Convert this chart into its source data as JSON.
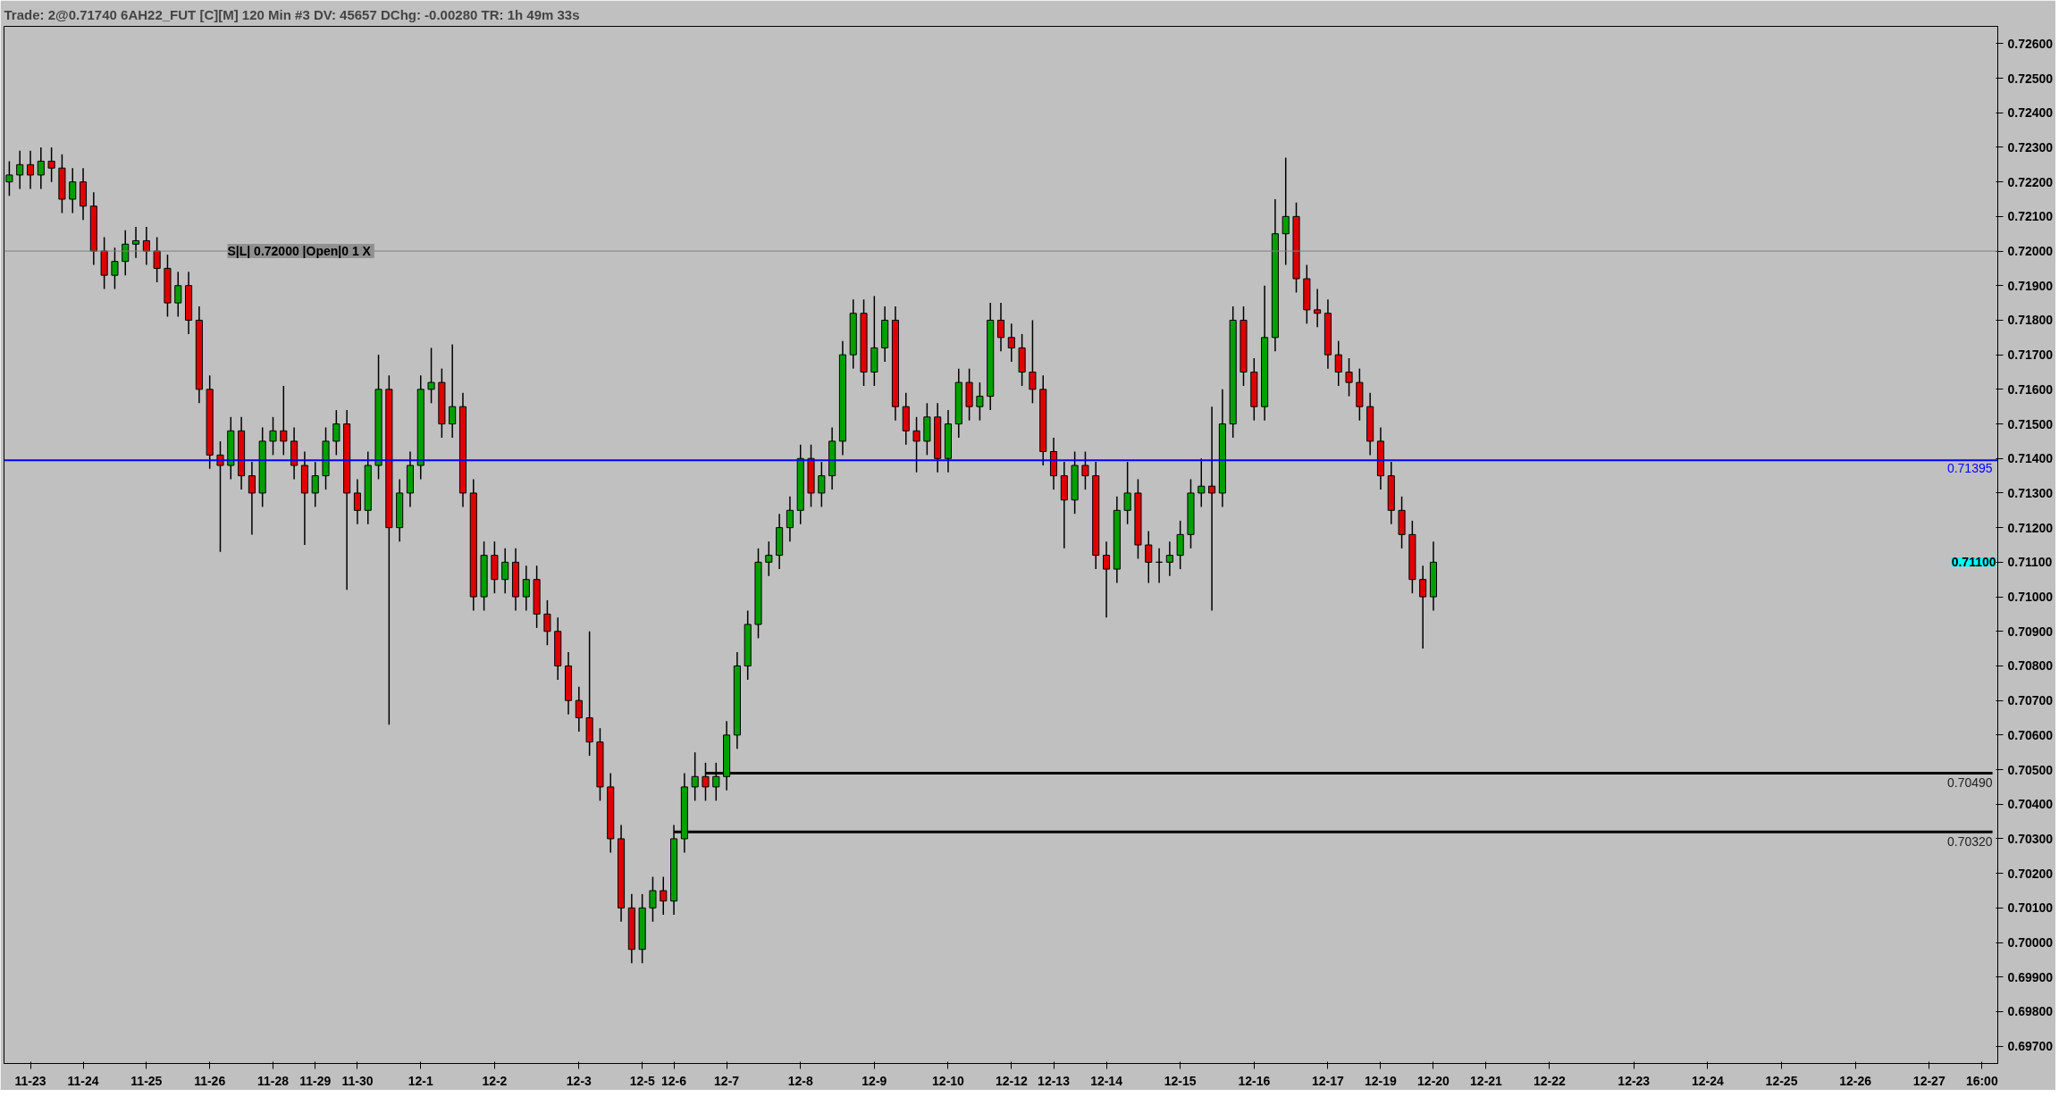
{
  "chart_data": {
    "type": "candlestick",
    "title": "Trade: 2@0.71740 6AH22_FUT [C][M]  120 Min  #3 DV: 45657 DChg: -0.00280 TR: 1h 49m 33s",
    "categories": [
      null,
      null,
      "11-23",
      null,
      null,
      null,
      null,
      "11-24",
      null,
      null,
      null,
      null,
      null,
      "11-25",
      null,
      null,
      null,
      null,
      null,
      "11-26",
      null,
      null,
      null,
      null,
      null,
      "11-28",
      null,
      null,
      null,
      "11-29",
      null,
      null,
      null,
      "11-30",
      null,
      null,
      null,
      null,
      null,
      "12-1",
      null,
      null,
      null,
      null,
      null,
      null,
      "12-2",
      null,
      null,
      null,
      null,
      null,
      null,
      null,
      "12-3",
      null,
      null,
      null,
      null,
      null,
      "12-5",
      null,
      null,
      "12-6",
      null,
      null,
      null,
      null,
      "12-7",
      null,
      null,
      null,
      null,
      null,
      null,
      "12-8",
      null,
      null,
      null,
      null,
      null,
      null,
      "12-9",
      null,
      null,
      null,
      null,
      null,
      null,
      "12-10",
      null,
      null,
      null,
      null,
      null,
      "12-12",
      null,
      null,
      null,
      "12-13",
      null,
      null,
      null,
      null,
      "12-14",
      null,
      null,
      null,
      null,
      null,
      null,
      "12-15",
      null,
      null,
      null,
      null,
      null,
      null,
      "12-16",
      null,
      null,
      null,
      null,
      null,
      null,
      "12-17",
      null,
      null,
      null,
      null,
      "12-19",
      null,
      null,
      null,
      null,
      "12-20",
      null,
      null,
      null,
      null,
      "12-21",
      null,
      null,
      null,
      null,
      null,
      "12-22",
      null,
      null,
      null,
      null,
      null,
      null,
      null,
      "12-23",
      null,
      null,
      null,
      null,
      null,
      null,
      "12-24",
      null,
      null,
      null,
      null,
      null,
      null,
      "12-25",
      null,
      null,
      null,
      null,
      null,
      null,
      "12-26",
      null,
      null,
      null,
      null,
      null,
      null,
      "12-27",
      null,
      null,
      null,
      null,
      "16:00",
      null
    ],
    "ohlc": [
      [
        0.722,
        0.7226,
        0.7216,
        0.7222
      ],
      [
        0.7222,
        0.7229,
        0.7218,
        0.7225
      ],
      [
        0.7225,
        0.7229,
        0.7218,
        0.7222
      ],
      [
        0.7222,
        0.723,
        0.7218,
        0.7226
      ],
      [
        0.7226,
        0.723,
        0.722,
        0.7224
      ],
      [
        0.7224,
        0.7228,
        0.7211,
        0.7215
      ],
      [
        0.7215,
        0.7224,
        0.7211,
        0.722
      ],
      [
        0.722,
        0.7224,
        0.7209,
        0.7213
      ],
      [
        0.7213,
        0.7217,
        0.7196,
        0.72
      ],
      [
        0.72,
        0.7204,
        0.7189,
        0.7193
      ],
      [
        0.7193,
        0.7201,
        0.7189,
        0.7197
      ],
      [
        0.7197,
        0.7206,
        0.7193,
        0.7202
      ],
      [
        0.7202,
        0.7207,
        0.7198,
        0.7203
      ],
      [
        0.7203,
        0.7207,
        0.7196,
        0.72
      ],
      [
        0.72,
        0.7204,
        0.7191,
        0.7195
      ],
      [
        0.7195,
        0.7199,
        0.7181,
        0.7185
      ],
      [
        0.7185,
        0.7194,
        0.7181,
        0.719
      ],
      [
        0.719,
        0.7194,
        0.7176,
        0.718
      ],
      [
        0.718,
        0.7184,
        0.7156,
        0.716
      ],
      [
        0.716,
        0.7164,
        0.7137,
        0.7141
      ],
      [
        0.7141,
        0.7145,
        0.7113,
        0.7138
      ],
      [
        0.7138,
        0.7152,
        0.7134,
        0.7148
      ],
      [
        0.7148,
        0.7152,
        0.7131,
        0.7135
      ],
      [
        0.7135,
        0.7139,
        0.7118,
        0.713
      ],
      [
        0.713,
        0.7149,
        0.7126,
        0.7145
      ],
      [
        0.7145,
        0.7152,
        0.7141,
        0.7148
      ],
      [
        0.7148,
        0.7161,
        0.7141,
        0.7145
      ],
      [
        0.7145,
        0.7149,
        0.7134,
        0.7138
      ],
      [
        0.7138,
        0.7142,
        0.7115,
        0.713
      ],
      [
        0.713,
        0.7139,
        0.7126,
        0.7135
      ],
      [
        0.7135,
        0.7149,
        0.7131,
        0.7145
      ],
      [
        0.7145,
        0.7154,
        0.7141,
        0.715
      ],
      [
        0.715,
        0.7154,
        0.7102,
        0.713
      ],
      [
        0.713,
        0.7134,
        0.7121,
        0.7125
      ],
      [
        0.7125,
        0.7142,
        0.7121,
        0.7138
      ],
      [
        0.7138,
        0.717,
        0.7134,
        0.716
      ],
      [
        0.716,
        0.7164,
        0.7063,
        0.712
      ],
      [
        0.712,
        0.7134,
        0.7116,
        0.713
      ],
      [
        0.713,
        0.7142,
        0.7126,
        0.7138
      ],
      [
        0.7138,
        0.7164,
        0.7134,
        0.716
      ],
      [
        0.716,
        0.7172,
        0.7156,
        0.7162
      ],
      [
        0.7162,
        0.7166,
        0.7146,
        0.715
      ],
      [
        0.715,
        0.7173,
        0.7146,
        0.7155
      ],
      [
        0.7155,
        0.7159,
        0.7126,
        0.713
      ],
      [
        0.713,
        0.7134,
        0.7096,
        0.71
      ],
      [
        0.71,
        0.7116,
        0.7096,
        0.7112
      ],
      [
        0.7112,
        0.7116,
        0.7101,
        0.7105
      ],
      [
        0.7105,
        0.7114,
        0.7101,
        0.711
      ],
      [
        0.711,
        0.7114,
        0.7096,
        0.71
      ],
      [
        0.71,
        0.7109,
        0.7096,
        0.7105
      ],
      [
        0.7105,
        0.7109,
        0.7091,
        0.7095
      ],
      [
        0.7095,
        0.7099,
        0.7086,
        0.709
      ],
      [
        0.709,
        0.7094,
        0.7076,
        0.708
      ],
      [
        0.708,
        0.7084,
        0.7066,
        0.707
      ],
      [
        0.707,
        0.7074,
        0.7061,
        0.7065
      ],
      [
        0.7065,
        0.709,
        0.7054,
        0.7058
      ],
      [
        0.7058,
        0.7062,
        0.7041,
        0.7045
      ],
      [
        0.7045,
        0.7049,
        0.7026,
        0.703
      ],
      [
        0.703,
        0.7034,
        0.7006,
        0.701
      ],
      [
        0.701,
        0.7014,
        0.6994,
        0.6998
      ],
      [
        0.6998,
        0.7014,
        0.6994,
        0.701
      ],
      [
        0.701,
        0.7019,
        0.7006,
        0.7015
      ],
      [
        0.7015,
        0.7019,
        0.7008,
        0.7012
      ],
      [
        0.7012,
        0.7034,
        0.7008,
        0.703
      ],
      [
        0.703,
        0.7049,
        0.7026,
        0.7045
      ],
      [
        0.7045,
        0.7055,
        0.7041,
        0.7048
      ],
      [
        0.7048,
        0.7052,
        0.7041,
        0.7045
      ],
      [
        0.7045,
        0.7052,
        0.7041,
        0.7048
      ],
      [
        0.7048,
        0.7064,
        0.7044,
        0.706
      ],
      [
        0.706,
        0.7084,
        0.7056,
        0.708
      ],
      [
        0.708,
        0.7096,
        0.7076,
        0.7092
      ],
      [
        0.7092,
        0.7114,
        0.7088,
        0.711
      ],
      [
        0.711,
        0.7116,
        0.7106,
        0.7112
      ],
      [
        0.7112,
        0.7124,
        0.7108,
        0.712
      ],
      [
        0.712,
        0.7129,
        0.7116,
        0.7125
      ],
      [
        0.7125,
        0.7144,
        0.7121,
        0.714
      ],
      [
        0.714,
        0.7144,
        0.7126,
        0.713
      ],
      [
        0.713,
        0.7139,
        0.7126,
        0.7135
      ],
      [
        0.7135,
        0.7149,
        0.7131,
        0.7145
      ],
      [
        0.7145,
        0.7174,
        0.7141,
        0.717
      ],
      [
        0.717,
        0.7186,
        0.7166,
        0.7182
      ],
      [
        0.7182,
        0.7186,
        0.7161,
        0.7165
      ],
      [
        0.7165,
        0.7187,
        0.7161,
        0.7172
      ],
      [
        0.7172,
        0.7184,
        0.7168,
        0.718
      ],
      [
        0.718,
        0.7184,
        0.7151,
        0.7155
      ],
      [
        0.7155,
        0.7159,
        0.7144,
        0.7148
      ],
      [
        0.7148,
        0.7152,
        0.7136,
        0.7145
      ],
      [
        0.7145,
        0.7156,
        0.7141,
        0.7152
      ],
      [
        0.7152,
        0.7156,
        0.7136,
        0.714
      ],
      [
        0.714,
        0.7154,
        0.7136,
        0.715
      ],
      [
        0.715,
        0.7166,
        0.7146,
        0.7162
      ],
      [
        0.7162,
        0.7166,
        0.7151,
        0.7155
      ],
      [
        0.7155,
        0.7162,
        0.7151,
        0.7158
      ],
      [
        0.7158,
        0.7185,
        0.7154,
        0.718
      ],
      [
        0.718,
        0.7185,
        0.7171,
        0.7175
      ],
      [
        0.7175,
        0.7179,
        0.7168,
        0.7172
      ],
      [
        0.7172,
        0.7176,
        0.7161,
        0.7165
      ],
      [
        0.7165,
        0.718,
        0.7156,
        0.716
      ],
      [
        0.716,
        0.7164,
        0.7138,
        0.7142
      ],
      [
        0.7142,
        0.7146,
        0.7131,
        0.7135
      ],
      [
        0.7135,
        0.7139,
        0.7114,
        0.7128
      ],
      [
        0.7128,
        0.7142,
        0.7124,
        0.7138
      ],
      [
        0.7138,
        0.7142,
        0.7131,
        0.7135
      ],
      [
        0.7135,
        0.7139,
        0.7108,
        0.7112
      ],
      [
        0.7112,
        0.7116,
        0.7094,
        0.7108
      ],
      [
        0.7108,
        0.7129,
        0.7104,
        0.7125
      ],
      [
        0.7125,
        0.7139,
        0.7121,
        0.713
      ],
      [
        0.713,
        0.7134,
        0.7111,
        0.7115
      ],
      [
        0.7115,
        0.7119,
        0.7104,
        0.711
      ],
      [
        0.711,
        0.7114,
        0.7104,
        0.711
      ],
      [
        0.711,
        0.7116,
        0.7106,
        0.7112
      ],
      [
        0.7112,
        0.7122,
        0.7108,
        0.7118
      ],
      [
        0.7118,
        0.7134,
        0.7114,
        0.713
      ],
      [
        0.713,
        0.714,
        0.7126,
        0.7132
      ],
      [
        0.7132,
        0.7155,
        0.7096,
        0.713
      ],
      [
        0.713,
        0.716,
        0.7126,
        0.715
      ],
      [
        0.715,
        0.7184,
        0.7146,
        0.718
      ],
      [
        0.718,
        0.7184,
        0.7161,
        0.7165
      ],
      [
        0.7165,
        0.7169,
        0.7151,
        0.7155
      ],
      [
        0.7155,
        0.719,
        0.7151,
        0.7175
      ],
      [
        0.7175,
        0.7215,
        0.7171,
        0.7205
      ],
      [
        0.7205,
        0.7227,
        0.7196,
        0.721
      ],
      [
        0.721,
        0.7214,
        0.7188,
        0.7192
      ],
      [
        0.7192,
        0.7196,
        0.7179,
        0.7183
      ],
      [
        0.7183,
        0.7189,
        0.7178,
        0.7182
      ],
      [
        0.7182,
        0.7186,
        0.7166,
        0.717
      ],
      [
        0.717,
        0.7174,
        0.7161,
        0.7165
      ],
      [
        0.7165,
        0.7169,
        0.7158,
        0.7162
      ],
      [
        0.7162,
        0.7166,
        0.7151,
        0.7155
      ],
      [
        0.7155,
        0.7159,
        0.7141,
        0.7145
      ],
      [
        0.7145,
        0.7149,
        0.7131,
        0.7135
      ],
      [
        0.7135,
        0.7139,
        0.7121,
        0.7125
      ],
      [
        0.7125,
        0.7129,
        0.7114,
        0.7118
      ],
      [
        0.7118,
        0.7122,
        0.7101,
        0.7105
      ],
      [
        0.7105,
        0.7109,
        0.7085,
        0.71
      ],
      [
        0.71,
        0.7116,
        0.7096,
        0.711
      ],
      null,
      null,
      null,
      null,
      null,
      null,
      null,
      null,
      null,
      null,
      null,
      null,
      null,
      null,
      null,
      null,
      null,
      null,
      null,
      null,
      null,
      null,
      null,
      null,
      null,
      null,
      null,
      null,
      null,
      null,
      null,
      null,
      null,
      null,
      null,
      null,
      null,
      null,
      null,
      null,
      null,
      null,
      null,
      null,
      null,
      null,
      null,
      null,
      null,
      null,
      null,
      null,
      null
    ],
    "series": [
      {
        "type": "line",
        "color": "#000000",
        "values": [
          null,
          null,
          null,
          null,
          null,
          null,
          null,
          null,
          null,
          null,
          null,
          null,
          null,
          null,
          null,
          null,
          null,
          null,
          null,
          null,
          null,
          null,
          null,
          null,
          null,
          null,
          null,
          null,
          null,
          null,
          null,
          null,
          null,
          null,
          null,
          null,
          null,
          null,
          null,
          null,
          null,
          null,
          null,
          null,
          null,
          null,
          null,
          null,
          null,
          null,
          null,
          null,
          null,
          null,
          null,
          null,
          null,
          null,
          null,
          null,
          null,
          null,
          null,
          null,
          null,
          null,
          0.7049,
          0.7049,
          0.7049,
          0.7049,
          0.7049,
          0.7049,
          0.7049,
          0.7049,
          0.7049,
          0.7049,
          0.7049,
          0.7049,
          0.7049,
          0.7049,
          0.7049,
          0.7049,
          0.7049,
          0.7049,
          0.7049,
          0.7049,
          0.7049,
          0.7049,
          0.7049,
          0.7049,
          0.7049,
          0.7049,
          0.7049,
          0.7049,
          0.7049,
          0.7049,
          0.7049,
          0.7049,
          0.7049,
          0.7049,
          0.7049,
          0.7049,
          0.7049,
          0.7049,
          0.7049,
          0.7049,
          0.7049,
          0.7049,
          0.7049,
          0.7049,
          0.7049,
          0.7049,
          0.7049,
          0.7049,
          0.7049,
          0.7049,
          0.7049,
          0.7049,
          0.7049,
          0.7049,
          0.7049,
          0.7049,
          0.7049,
          0.7049,
          0.7049,
          0.7049,
          0.7049,
          0.7049,
          0.7049,
          0.7049,
          0.7049,
          0.7049,
          0.7049,
          0.7049,
          0.7049,
          0.7049,
          0.7049,
          0.7049,
          0.7049,
          0.7049,
          0.7049,
          0.7049,
          0.7049,
          0.7049,
          0.7049,
          0.7049,
          0.7049,
          0.7049,
          0.7049,
          0.7049,
          0.7049,
          0.7049,
          0.7049,
          0.7049,
          0.7049,
          0.7049,
          0.7049,
          0.7049,
          0.7049,
          0.7049,
          0.7049,
          0.7049,
          0.7049,
          0.7049,
          0.7049,
          0.7049,
          0.7049,
          0.7049,
          0.7049,
          0.7049,
          0.7049,
          0.7049,
          0.7049,
          0.7049,
          0.7049,
          0.7049,
          0.7049,
          0.7049,
          0.7049,
          0.7049,
          0.7049,
          0.7049,
          0.7049,
          0.7049,
          0.7049,
          0.7049,
          0.7049,
          0.7049,
          0.7049
        ],
        "value_labels": [
          null,
          null,
          null,
          null,
          null,
          null,
          null,
          null,
          null,
          null,
          null,
          null,
          null,
          null,
          null,
          null,
          null,
          null,
          null,
          null,
          null,
          null,
          null,
          null,
          null,
          null,
          null,
          null,
          null,
          null,
          null,
          null,
          null,
          null,
          null,
          null,
          null,
          null,
          null,
          null,
          null,
          null,
          null,
          null,
          null,
          null,
          null,
          null,
          null,
          null,
          null,
          null,
          null,
          null,
          null,
          null,
          null,
          null,
          null,
          null,
          null,
          null,
          null,
          null,
          null,
          null,
          null,
          null,
          null,
          null,
          null,
          null,
          null,
          null,
          null,
          null,
          null,
          null,
          null,
          null,
          null,
          null,
          null,
          null,
          null,
          null,
          null,
          null,
          null,
          null,
          null,
          null,
          null,
          null,
          null,
          null,
          null,
          null,
          null,
          null,
          null,
          null,
          null,
          null,
          null,
          null,
          null,
          null,
          null,
          null,
          null,
          null,
          null,
          null,
          null,
          null,
          null,
          null,
          null,
          null,
          null,
          null,
          null,
          null,
          null,
          null,
          null,
          null,
          null,
          null,
          null,
          null,
          null,
          null,
          null,
          null,
          null,
          null,
          null,
          null,
          null,
          null,
          null,
          null,
          null,
          null,
          null,
          null,
          null,
          null,
          null,
          null,
          null,
          null,
          null,
          null,
          null,
          null,
          null,
          null,
          null,
          null,
          null,
          null,
          null,
          null,
          null,
          null,
          null,
          null,
          null,
          null,
          null,
          null,
          null,
          null,
          null,
          null,
          null,
          null,
          null,
          null,
          null,
          null,
          null,
          null,
          null,
          null,
          "0.70490"
        ]
      },
      {
        "type": "line",
        "color": "#000000",
        "values": [
          null,
          null,
          null,
          null,
          null,
          null,
          null,
          null,
          null,
          null,
          null,
          null,
          null,
          null,
          null,
          null,
          null,
          null,
          null,
          null,
          null,
          null,
          null,
          null,
          null,
          null,
          null,
          null,
          null,
          null,
          null,
          null,
          null,
          null,
          null,
          null,
          null,
          null,
          null,
          null,
          null,
          null,
          null,
          null,
          null,
          null,
          null,
          null,
          null,
          null,
          null,
          null,
          null,
          null,
          null,
          null,
          null,
          null,
          null,
          null,
          null,
          null,
          null,
          0.7032,
          0.7032,
          0.7032,
          0.7032,
          0.7032,
          0.7032,
          0.7032,
          0.7032,
          0.7032,
          0.7032,
          0.7032,
          0.7032,
          0.7032,
          0.7032,
          0.7032,
          0.7032,
          0.7032,
          0.7032,
          0.7032,
          0.7032,
          0.7032,
          0.7032,
          0.7032,
          0.7032,
          0.7032,
          0.7032,
          0.7032,
          0.7032,
          0.7032,
          0.7032,
          0.7032,
          0.7032,
          0.7032,
          0.7032,
          0.7032,
          0.7032,
          0.7032,
          0.7032,
          0.7032,
          0.7032,
          0.7032,
          0.7032,
          0.7032,
          0.7032,
          0.7032,
          0.7032,
          0.7032,
          0.7032,
          0.7032,
          0.7032,
          0.7032,
          0.7032,
          0.7032,
          0.7032,
          0.7032,
          0.7032,
          0.7032,
          0.7032,
          0.7032,
          0.7032,
          0.7032,
          0.7032,
          0.7032,
          0.7032,
          0.7032,
          0.7032,
          0.7032,
          0.7032,
          0.7032,
          0.7032,
          0.7032,
          0.7032,
          0.7032,
          0.7032,
          0.7032,
          0.7032,
          0.7032,
          0.7032,
          0.7032,
          0.7032,
          0.7032,
          0.7032,
          0.7032,
          0.7032,
          0.7032,
          0.7032,
          0.7032,
          0.7032,
          0.7032,
          0.7032,
          0.7032,
          0.7032,
          0.7032,
          0.7032,
          0.7032,
          0.7032,
          0.7032,
          0.7032,
          0.7032,
          0.7032,
          0.7032,
          0.7032,
          0.7032,
          0.7032,
          0.7032,
          0.7032,
          0.7032,
          0.7032,
          0.7032,
          0.7032,
          0.7032,
          0.7032,
          0.7032,
          0.7032,
          0.7032,
          0.7032,
          0.7032,
          0.7032,
          0.7032,
          0.7032,
          0.7032,
          0.7032,
          0.7032,
          0.7032,
          0.7032,
          0.7032
        ],
        "value_labels": [
          null,
          null,
          null,
          null,
          null,
          null,
          null,
          null,
          null,
          null,
          null,
          null,
          null,
          null,
          null,
          null,
          null,
          null,
          null,
          null,
          null,
          null,
          null,
          null,
          null,
          null,
          null,
          null,
          null,
          null,
          null,
          null,
          null,
          null,
          null,
          null,
          null,
          null,
          null,
          null,
          null,
          null,
          null,
          null,
          null,
          null,
          null,
          null,
          null,
          null,
          null,
          null,
          null,
          null,
          null,
          null,
          null,
          null,
          null,
          null,
          null,
          null,
          null,
          null,
          null,
          null,
          null,
          null,
          null,
          null,
          null,
          null,
          null,
          null,
          null,
          null,
          null,
          null,
          null,
          null,
          null,
          null,
          null,
          null,
          null,
          null,
          null,
          null,
          null,
          null,
          null,
          null,
          null,
          null,
          null,
          null,
          null,
          null,
          null,
          null,
          null,
          null,
          null,
          null,
          null,
          null,
          null,
          null,
          null,
          null,
          null,
          null,
          null,
          null,
          null,
          null,
          null,
          null,
          null,
          null,
          null,
          null,
          null,
          null,
          null,
          null,
          null,
          null,
          null,
          null,
          null,
          null,
          null,
          null,
          null,
          null,
          null,
          null,
          null,
          null,
          null,
          null,
          null,
          null,
          null,
          null,
          null,
          null,
          null,
          null,
          null,
          null,
          null,
          null,
          null,
          null,
          null,
          null,
          null,
          null,
          null,
          null,
          null,
          null,
          null,
          null,
          null,
          null,
          null,
          null,
          null,
          null,
          null,
          null,
          null,
          null,
          null,
          null,
          null,
          null,
          null,
          null,
          null,
          null,
          null,
          null,
          null,
          null,
          "0.70320"
        ]
      }
    ],
    "ref_lines": [
      {
        "axis": "y",
        "value": 0.72,
        "label": "S|L| 0.72000 |Open|0 1  X",
        "color": "#808080"
      },
      {
        "axis": "y",
        "value": 0.71395,
        "label": "0.71395",
        "color": "#0000ff"
      }
    ],
    "annotations": [
      "0.71100"
    ],
    "ylim": [
      0.6965,
      0.7265
    ],
    "yticks": [
      {
        "value": 0.697,
        "label": "0.69700"
      },
      {
        "value": 0.698,
        "label": "0.69800"
      },
      {
        "value": 0.699,
        "label": "0.69900"
      },
      {
        "value": 0.7,
        "label": "0.70000"
      },
      {
        "value": 0.701,
        "label": "0.70100"
      },
      {
        "value": 0.702,
        "label": "0.70200"
      },
      {
        "value": 0.703,
        "label": "0.70300"
      },
      {
        "value": 0.704,
        "label": "0.70400"
      },
      {
        "value": 0.705,
        "label": "0.70500"
      },
      {
        "value": 0.706,
        "label": "0.70600"
      },
      {
        "value": 0.707,
        "label": "0.70700"
      },
      {
        "value": 0.708,
        "label": "0.70800"
      },
      {
        "value": 0.709,
        "label": "0.70900"
      },
      {
        "value": 0.71,
        "label": "0.71000"
      },
      {
        "value": 0.711,
        "label": "0.71100"
      },
      {
        "value": 0.712,
        "label": "0.71200"
      },
      {
        "value": 0.713,
        "label": "0.71300"
      },
      {
        "value": 0.714,
        "label": "0.71400"
      },
      {
        "value": 0.715,
        "label": "0.71500"
      },
      {
        "value": 0.716,
        "label": "0.71600"
      },
      {
        "value": 0.717,
        "label": "0.71700"
      },
      {
        "value": 0.718,
        "label": "0.71800"
      },
      {
        "value": 0.719,
        "label": "0.71900"
      },
      {
        "value": 0.72,
        "label": "0.72000"
      },
      {
        "value": 0.721,
        "label": "0.72100"
      },
      {
        "value": 0.722,
        "label": "0.72200"
      },
      {
        "value": 0.723,
        "label": "0.72300"
      },
      {
        "value": 0.724,
        "label": "0.72400"
      },
      {
        "value": 0.725,
        "label": "0.72500"
      },
      {
        "value": 0.726,
        "label": "0.72600"
      }
    ]
  }
}
